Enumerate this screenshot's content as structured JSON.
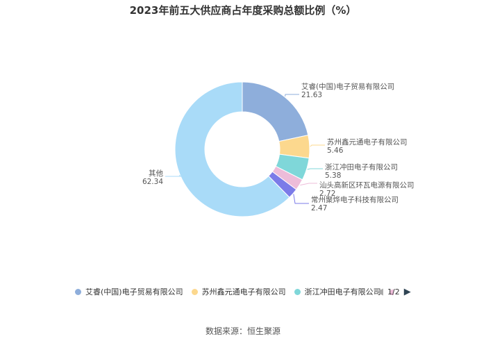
{
  "title": "2023年前五大供应商占年度采购总额比例（%）",
  "chart_data": {
    "type": "pie",
    "title": "2023年前五大供应商占年度采购总额比例（%）",
    "labels": [
      "艾睿(中国)电子贸易有限公司",
      "苏州鑫元通电子有限公司",
      "浙江冲田电子有限公司",
      "汕头高新区环瓦电源有限公司",
      "常州聚烨电子科技有限公司",
      "其他"
    ],
    "values": [
      21.63,
      5.46,
      5.38,
      2.72,
      2.47,
      62.34
    ],
    "value_labels": [
      "21.63",
      "5.46",
      "5.38",
      "2.72",
      "2.47",
      "62.34"
    ],
    "colors": [
      "#8eaedb",
      "#fcd88e",
      "#7fd7d9",
      "#edbcd9",
      "#7b7be8",
      "#a9dbf8"
    ],
    "donut": true,
    "legend_position": "bottom"
  },
  "legend": {
    "items": [
      {
        "label": "艾睿(中国)电子贸易有限公司",
        "color": "#8eaedb"
      },
      {
        "label": "苏州鑫元通电子有限公司",
        "color": "#fcd88e"
      },
      {
        "label": "浙江冲田电子有限公司",
        "color": "#7fd7d9"
      }
    ],
    "partial_color": "#edbcd9",
    "page": "1/2"
  },
  "source": "数据来源：恒生聚源"
}
